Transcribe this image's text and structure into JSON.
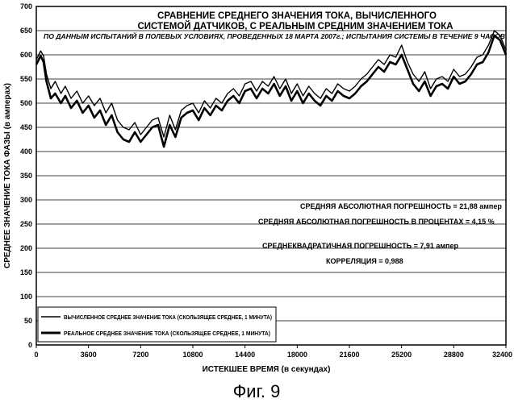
{
  "chart_data": {
    "type": "line",
    "title_lines": [
      "СРАВНЕНИЕ СРЕДНЕГО ЗНАЧЕНИЯ ТОКА, ВЫЧИСЛЕННОГО",
      "СИСТЕМОЙ ДАТЧИКОВ, С РЕАЛЬНЫМ СРЕДНИМ ЗНАЧЕНИЕМ ТОКА"
    ],
    "subtitle": "ПО ДАННЫМ ИСПЫТАНИЙ В ПОЛЕВЫХ УСЛОВИЯХ, ПРОВЕДЕННЫХ 18 МАРТА 2007г.; ИСПЫТАНИЯ СИСТЕМЫ В ТЕЧЕНИЕ 9 ЧАСОВ",
    "xlabel": "ИСТЕКШЕЕ ВРЕМЯ   (в секундах)",
    "ylabel": "СРЕДНЕЕ ЗНАЧЕНИЕ ТОКА ФАЗЫ  (в амперах)",
    "xlim": [
      0,
      32400
    ],
    "ylim": [
      0,
      700
    ],
    "xticks": [
      "0",
      "3600",
      "7200",
      "10800",
      "14400",
      "18000",
      "21600",
      "25200",
      "28800",
      "32400"
    ],
    "yticks": [
      "0",
      "50",
      "100",
      "150",
      "200",
      "250",
      "300",
      "350",
      "400",
      "450",
      "500",
      "550",
      "600",
      "650",
      "700"
    ],
    "grid": true,
    "legend_position": "bottom-left",
    "annotations": [
      "СРЕДНЯЯ АБСОЛЮТНАЯ ПОГРЕШНОСТЬ = 21,88 ампер",
      "СРЕДНЯЯ АБСОЛЮТНАЯ ПОГРЕШНОСТЬ В ПРОЦЕНТАХ = 4,15 %",
      "СРЕДНЕКВАДРАТИЧНАЯ ПОГРЕШНОСТЬ = 7,91 ампер",
      "КОРРЕЛЯЦИЯ = 0,988"
    ],
    "series": [
      {
        "name": "ВЫЧИСЛЕННОЕ СРЕДНЕЕ ЗНАЧЕНИЕ ТОКА  (СКОЛЬЗЯЩЕЕ СРЕДНЕЕ, 1 МИНУТА)",
        "x": [
          0,
          300,
          500,
          700,
          1000,
          1300,
          1700,
          2000,
          2400,
          2800,
          3200,
          3600,
          4000,
          4400,
          4800,
          5200,
          5600,
          6000,
          6400,
          6800,
          7200,
          7600,
          8000,
          8400,
          8800,
          9200,
          9600,
          10000,
          10400,
          10800,
          11200,
          11600,
          12000,
          12400,
          12800,
          13200,
          13600,
          14000,
          14400,
          14800,
          15200,
          15600,
          16000,
          16400,
          16800,
          17200,
          17600,
          18000,
          18400,
          18800,
          19200,
          19600,
          20000,
          20400,
          20800,
          21200,
          21600,
          22000,
          22400,
          22800,
          23200,
          23600,
          24000,
          24400,
          24800,
          25200,
          25600,
          26000,
          26400,
          26800,
          27200,
          27600,
          28000,
          28400,
          28800,
          29200,
          29600,
          30000,
          30400,
          30800,
          31200,
          31600,
          32000,
          32400
        ],
        "y": [
          590,
          608,
          598,
          560,
          530,
          545,
          520,
          535,
          510,
          525,
          500,
          515,
          495,
          510,
          480,
          500,
          465,
          450,
          445,
          460,
          435,
          450,
          465,
          470,
          430,
          475,
          445,
          485,
          495,
          500,
          480,
          505,
          490,
          510,
          500,
          520,
          530,
          515,
          540,
          545,
          525,
          545,
          535,
          555,
          530,
          550,
          520,
          540,
          515,
          535,
          520,
          510,
          530,
          520,
          540,
          530,
          525,
          535,
          550,
          560,
          575,
          590,
          580,
          600,
          595,
          620,
          585,
          560,
          545,
          565,
          530,
          550,
          555,
          545,
          570,
          555,
          560,
          575,
          595,
          600,
          620,
          650,
          640,
          610
        ]
      },
      {
        "name": "РЕАЛЬНОЕ СРЕДНЕЕ ЗНАЧЕНИЕ ТОКА  (СКОЛЬЗЯЩЕЕ СРЕДНЕЕ, 1 МИНУТА)",
        "x": [
          0,
          300,
          500,
          700,
          1000,
          1300,
          1700,
          2000,
          2400,
          2800,
          3200,
          3600,
          4000,
          4400,
          4800,
          5200,
          5600,
          6000,
          6400,
          6800,
          7200,
          7600,
          8000,
          8400,
          8800,
          9200,
          9600,
          10000,
          10400,
          10800,
          11200,
          11600,
          12000,
          12400,
          12800,
          13200,
          13600,
          14000,
          14400,
          14800,
          15200,
          15600,
          16000,
          16400,
          16800,
          17200,
          17600,
          18000,
          18400,
          18800,
          19200,
          19600,
          20000,
          20400,
          20800,
          21200,
          21600,
          22000,
          22400,
          22800,
          23200,
          23600,
          24000,
          24400,
          24800,
          25200,
          25600,
          26000,
          26400,
          26800,
          27200,
          27600,
          28000,
          28400,
          28800,
          29200,
          29600,
          30000,
          30400,
          30800,
          31200,
          31600,
          32000,
          32400
        ],
        "y": [
          580,
          598,
          585,
          545,
          510,
          520,
          500,
          515,
          490,
          505,
          480,
          495,
          470,
          485,
          455,
          475,
          440,
          425,
          420,
          440,
          420,
          435,
          450,
          455,
          410,
          455,
          430,
          470,
          480,
          485,
          465,
          490,
          475,
          495,
          485,
          505,
          515,
          500,
          525,
          530,
          510,
          530,
          520,
          540,
          515,
          535,
          505,
          525,
          500,
          520,
          505,
          495,
          515,
          505,
          525,
          515,
          510,
          520,
          535,
          545,
          560,
          575,
          565,
          585,
          580,
          600,
          570,
          540,
          525,
          545,
          515,
          535,
          540,
          530,
          555,
          540,
          545,
          560,
          580,
          585,
          605,
          640,
          630,
          600
        ]
      }
    ],
    "figure_caption": "Фиг. 9"
  }
}
